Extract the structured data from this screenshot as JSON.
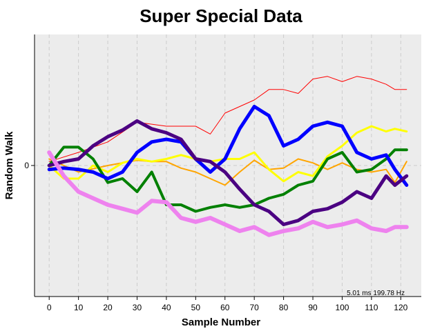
{
  "chart_data": {
    "type": "line",
    "title": "Super Special Data",
    "xlabel": "Sample Number",
    "ylabel": "Random Walk",
    "xlim": [
      -5,
      127
    ],
    "x_ticks": [
      0,
      10,
      20,
      30,
      40,
      50,
      60,
      70,
      80,
      90,
      100,
      110,
      120
    ],
    "ylim": [
      -100,
      100
    ],
    "y_ticks": [
      0
    ],
    "grid": true,
    "benchmark": "5.01 ms 199.78 Hz",
    "colors": {
      "plot_bg": "#ececec",
      "grid": "#cccccc"
    },
    "series": [
      {
        "color": "#ff0000",
        "width": 1,
        "points": [
          [
            0,
            3
          ],
          [
            10,
            10
          ],
          [
            20,
            18
          ],
          [
            30,
            33
          ],
          [
            40,
            30
          ],
          [
            50,
            30
          ],
          [
            55,
            24
          ],
          [
            60,
            40
          ],
          [
            65,
            45
          ],
          [
            70,
            50
          ],
          [
            75,
            58
          ],
          [
            80,
            58
          ],
          [
            85,
            55
          ],
          [
            90,
            66
          ],
          [
            95,
            68
          ],
          [
            100,
            64
          ],
          [
            105,
            68
          ],
          [
            110,
            66
          ],
          [
            115,
            62
          ],
          [
            118,
            58
          ],
          [
            122,
            58
          ]
        ]
      },
      {
        "color": "#ffa500",
        "width": 2,
        "points": [
          [
            0,
            5
          ],
          [
            10,
            -5
          ],
          [
            20,
            0
          ],
          [
            30,
            4
          ],
          [
            35,
            3
          ],
          [
            40,
            3
          ],
          [
            45,
            -2
          ],
          [
            50,
            -5
          ],
          [
            55,
            -10
          ],
          [
            60,
            -15
          ],
          [
            65,
            -5
          ],
          [
            70,
            4
          ],
          [
            75,
            -3
          ],
          [
            80,
            -2
          ],
          [
            85,
            5
          ],
          [
            90,
            2
          ],
          [
            95,
            -3
          ],
          [
            100,
            2
          ],
          [
            105,
            -3
          ],
          [
            110,
            -5
          ],
          [
            115,
            -3
          ],
          [
            118,
            -13
          ],
          [
            122,
            3
          ]
        ]
      },
      {
        "color": "#ffff00",
        "width": 3,
        "points": [
          [
            0,
            0
          ],
          [
            5,
            -10
          ],
          [
            10,
            -10
          ],
          [
            15,
            0
          ],
          [
            20,
            -5
          ],
          [
            25,
            2
          ],
          [
            30,
            5
          ],
          [
            35,
            3
          ],
          [
            40,
            5
          ],
          [
            45,
            8
          ],
          [
            50,
            5
          ],
          [
            55,
            3
          ],
          [
            60,
            5
          ],
          [
            65,
            5
          ],
          [
            70,
            10
          ],
          [
            75,
            -3
          ],
          [
            80,
            -12
          ],
          [
            85,
            -5
          ],
          [
            90,
            -8
          ],
          [
            95,
            7
          ],
          [
            100,
            15
          ],
          [
            105,
            25
          ],
          [
            110,
            30
          ],
          [
            115,
            26
          ],
          [
            118,
            28
          ],
          [
            122,
            26
          ]
        ]
      },
      {
        "color": "#008000",
        "width": 4,
        "points": [
          [
            0,
            0
          ],
          [
            5,
            14
          ],
          [
            10,
            14
          ],
          [
            15,
            5
          ],
          [
            20,
            -13
          ],
          [
            25,
            -10
          ],
          [
            30,
            -20
          ],
          [
            35,
            -5
          ],
          [
            40,
            -30
          ],
          [
            45,
            -30
          ],
          [
            50,
            -35
          ],
          [
            55,
            -32
          ],
          [
            60,
            -30
          ],
          [
            65,
            -32
          ],
          [
            70,
            -30
          ],
          [
            75,
            -25
          ],
          [
            80,
            -22
          ],
          [
            85,
            -15
          ],
          [
            90,
            -12
          ],
          [
            95,
            5
          ],
          [
            100,
            10
          ],
          [
            105,
            -5
          ],
          [
            110,
            -3
          ],
          [
            115,
            5
          ],
          [
            118,
            12
          ],
          [
            122,
            12
          ]
        ]
      },
      {
        "color": "#0000ff",
        "width": 5,
        "points": [
          [
            0,
            -3
          ],
          [
            5,
            -2
          ],
          [
            10,
            -3
          ],
          [
            15,
            -5
          ],
          [
            20,
            -10
          ],
          [
            25,
            -5
          ],
          [
            30,
            10
          ],
          [
            35,
            18
          ],
          [
            40,
            20
          ],
          [
            45,
            18
          ],
          [
            50,
            5
          ],
          [
            55,
            -5
          ],
          [
            60,
            5
          ],
          [
            65,
            28
          ],
          [
            70,
            45
          ],
          [
            75,
            38
          ],
          [
            80,
            15
          ],
          [
            85,
            20
          ],
          [
            90,
            30
          ],
          [
            95,
            33
          ],
          [
            100,
            30
          ],
          [
            105,
            10
          ],
          [
            110,
            5
          ],
          [
            115,
            8
          ],
          [
            118,
            -3
          ],
          [
            122,
            -15
          ]
        ]
      },
      {
        "color": "#4b0082",
        "width": 5,
        "points": [
          [
            0,
            0
          ],
          [
            5,
            3
          ],
          [
            10,
            5
          ],
          [
            15,
            15
          ],
          [
            20,
            22
          ],
          [
            25,
            27
          ],
          [
            30,
            34
          ],
          [
            35,
            28
          ],
          [
            40,
            25
          ],
          [
            45,
            20
          ],
          [
            50,
            5
          ],
          [
            55,
            3
          ],
          [
            60,
            -5
          ],
          [
            65,
            -18
          ],
          [
            70,
            -30
          ],
          [
            75,
            -35
          ],
          [
            80,
            -45
          ],
          [
            85,
            -42
          ],
          [
            90,
            -35
          ],
          [
            95,
            -33
          ],
          [
            100,
            -28
          ],
          [
            105,
            -20
          ],
          [
            110,
            -25
          ],
          [
            115,
            -8
          ],
          [
            118,
            -15
          ],
          [
            122,
            -8
          ]
        ]
      },
      {
        "color": "#ee82ee",
        "width": 6,
        "points": [
          [
            0,
            10
          ],
          [
            5,
            -8
          ],
          [
            10,
            -20
          ],
          [
            15,
            -25
          ],
          [
            20,
            -30
          ],
          [
            25,
            -33
          ],
          [
            30,
            -36
          ],
          [
            35,
            -27
          ],
          [
            40,
            -28
          ],
          [
            45,
            -40
          ],
          [
            50,
            -43
          ],
          [
            55,
            -40
          ],
          [
            60,
            -45
          ],
          [
            65,
            -50
          ],
          [
            70,
            -47
          ],
          [
            75,
            -53
          ],
          [
            80,
            -50
          ],
          [
            85,
            -48
          ],
          [
            90,
            -43
          ],
          [
            95,
            -47
          ],
          [
            100,
            -45
          ],
          [
            105,
            -42
          ],
          [
            110,
            -48
          ],
          [
            115,
            -50
          ],
          [
            118,
            -47
          ],
          [
            122,
            -47
          ]
        ]
      }
    ]
  }
}
